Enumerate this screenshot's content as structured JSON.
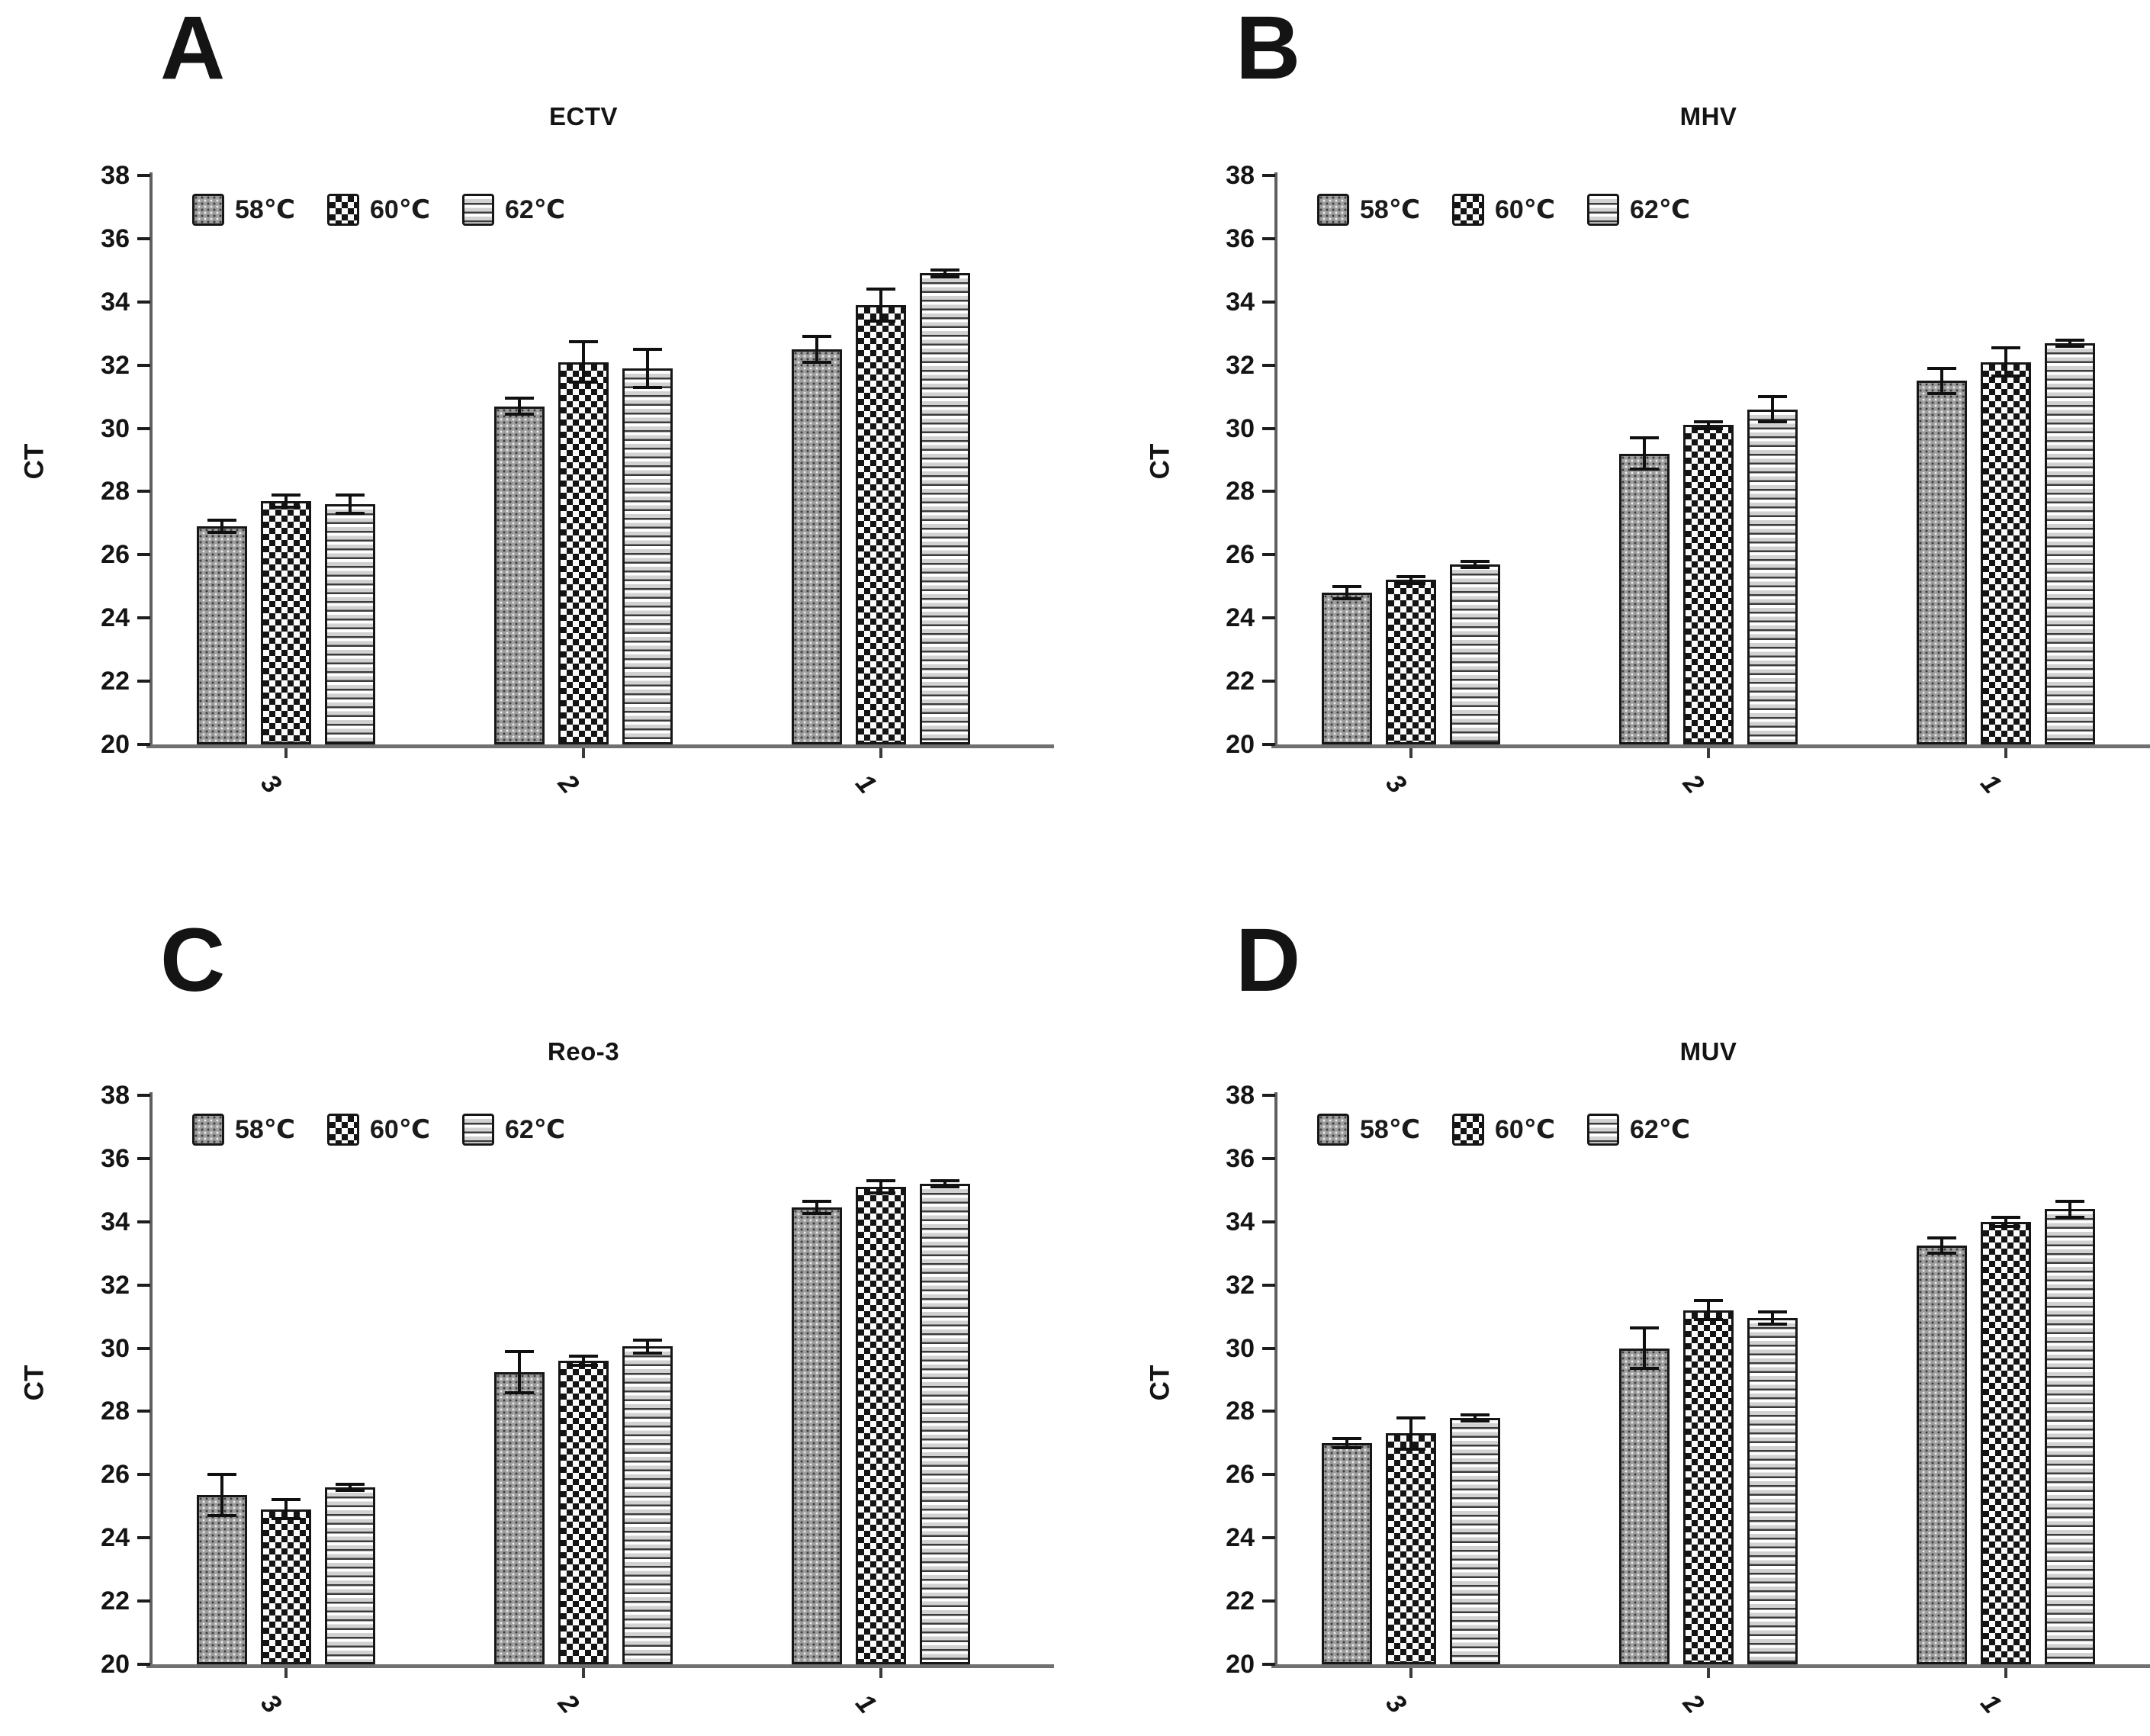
{
  "figure": {
    "background": "#ffffff",
    "text_color": "#141414",
    "axis_color": "#5f5f5f",
    "baseline_color": "#707070",
    "bar_border_color": "#161616",
    "error_bar_color": "#101010"
  },
  "chart_data": [
    {
      "type": "bar",
      "panel_label": "A",
      "title": "ECTV",
      "ylabel": "CT",
      "xlabel": "",
      "categories": [
        "3",
        "2",
        "1"
      ],
      "series": [
        {
          "name": "58℃",
          "pattern": "gray-dots",
          "values": [
            26.9,
            30.7,
            32.5
          ],
          "errors": [
            0.2,
            0.25,
            0.4
          ]
        },
        {
          "name": "60℃",
          "pattern": "checkerboard",
          "values": [
            27.7,
            32.1,
            33.9
          ],
          "errors": [
            0.2,
            0.65,
            0.5
          ]
        },
        {
          "name": "62℃",
          "pattern": "horizontal-stripes",
          "values": [
            27.6,
            31.9,
            34.9
          ],
          "errors": [
            0.3,
            0.6,
            0.1
          ]
        }
      ],
      "ylim": [
        20,
        38
      ],
      "yticks": [
        38,
        36,
        34,
        32,
        30,
        28,
        26,
        24,
        22,
        20
      ],
      "grid": false,
      "legend_position": "top-left",
      "error_bars": true
    },
    {
      "type": "bar",
      "panel_label": "B",
      "title": "MHV",
      "ylabel": "CT",
      "xlabel": "",
      "categories": [
        "3",
        "2",
        "1"
      ],
      "series": [
        {
          "name": "58℃",
          "pattern": "gray-dots",
          "values": [
            24.8,
            29.2,
            31.5
          ],
          "errors": [
            0.2,
            0.5,
            0.4
          ]
        },
        {
          "name": "60℃",
          "pattern": "checkerboard",
          "values": [
            25.2,
            30.1,
            32.1
          ],
          "errors": [
            0.1,
            0.1,
            0.45
          ]
        },
        {
          "name": "62℃",
          "pattern": "horizontal-stripes",
          "values": [
            25.7,
            30.6,
            32.7
          ],
          "errors": [
            0.1,
            0.4,
            0.1
          ]
        }
      ],
      "ylim": [
        20,
        38
      ],
      "yticks": [
        38,
        36,
        34,
        32,
        30,
        28,
        26,
        24,
        22,
        20
      ],
      "grid": false,
      "legend_position": "top-left",
      "error_bars": true
    },
    {
      "type": "bar",
      "panel_label": "C",
      "title": "Reo-3",
      "ylabel": "CT",
      "xlabel": "",
      "categories": [
        "3",
        "2",
        "1"
      ],
      "series": [
        {
          "name": "58℃",
          "pattern": "gray-dots",
          "values": [
            25.35,
            29.25,
            34.45
          ],
          "errors": [
            0.65,
            0.65,
            0.2
          ]
        },
        {
          "name": "60℃",
          "pattern": "checkerboard",
          "values": [
            24.9,
            29.6,
            35.1
          ],
          "errors": [
            0.3,
            0.15,
            0.2
          ]
        },
        {
          "name": "62℃",
          "pattern": "horizontal-stripes",
          "values": [
            25.6,
            30.05,
            35.2
          ],
          "errors": [
            0.1,
            0.2,
            0.1
          ]
        }
      ],
      "ylim": [
        20,
        38
      ],
      "yticks": [
        38,
        36,
        34,
        32,
        30,
        28,
        26,
        24,
        22,
        20
      ],
      "grid": false,
      "legend_position": "top-left",
      "error_bars": true
    },
    {
      "type": "bar",
      "panel_label": "D",
      "title": "MUV",
      "ylabel": "CT",
      "xlabel": "",
      "categories": [
        "3",
        "2",
        "1"
      ],
      "series": [
        {
          "name": "58℃",
          "pattern": "gray-dots",
          "values": [
            27.0,
            30.0,
            33.25
          ],
          "errors": [
            0.15,
            0.65,
            0.25
          ]
        },
        {
          "name": "60℃",
          "pattern": "checkerboard",
          "values": [
            27.3,
            31.2,
            34.0
          ],
          "errors": [
            0.5,
            0.3,
            0.15
          ]
        },
        {
          "name": "62℃",
          "pattern": "horizontal-stripes",
          "values": [
            27.8,
            30.95,
            34.4
          ],
          "errors": [
            0.1,
            0.2,
            0.25
          ]
        }
      ],
      "ylim": [
        20,
        38
      ],
      "yticks": [
        38,
        36,
        34,
        32,
        30,
        28,
        26,
        24,
        22,
        20
      ],
      "grid": false,
      "legend_position": "top-left",
      "error_bars": true
    }
  ]
}
